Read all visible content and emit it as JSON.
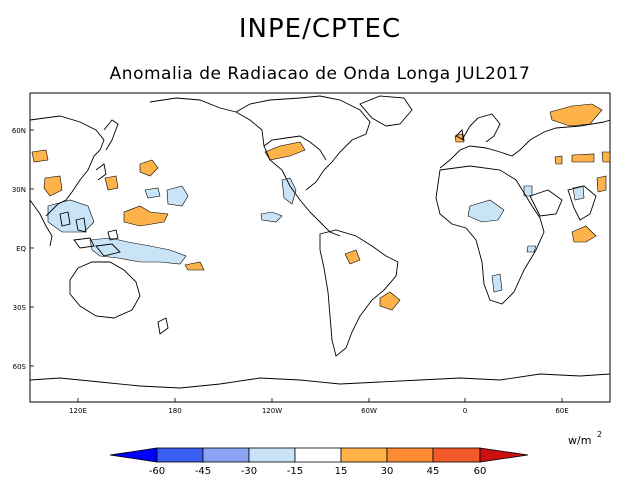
{
  "title": "INPE/CPTEC",
  "subtitle": "Anomalia de Radiacao de Onda Longa JUL2017",
  "map": {
    "lat_ticks": [
      "60N",
      "30N",
      "EQ",
      "30S",
      "60S"
    ],
    "lon_ticks": [
      "120E",
      "180",
      "120W",
      "60W",
      "0",
      "60E"
    ]
  },
  "colorbar": {
    "labels": [
      "-60",
      "-45",
      "-30",
      "-15",
      "15",
      "30",
      "45",
      "60"
    ],
    "colors": [
      "#0000ff",
      "#3a5ef0",
      "#8ba3f2",
      "#c9e3f7",
      "#ffffff",
      "#ffb347",
      "#ff8c33",
      "#f25a2a",
      "#cc1010"
    ],
    "units_label": "w/m",
    "units_exponent": "2"
  },
  "anomaly_colors": {
    "positive": "#fdb24a",
    "negative": "#c9e3f7"
  }
}
